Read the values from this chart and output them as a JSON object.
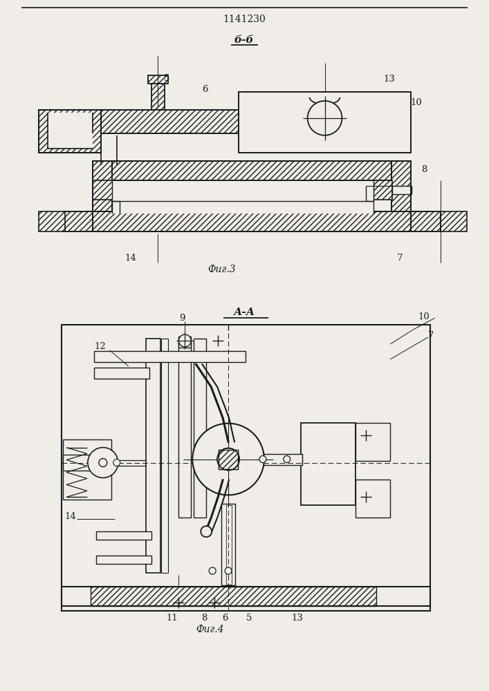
{
  "title": "1141230",
  "fig3_label": "Фиг.3",
  "fig4_label": "Фиг.4",
  "section_bb": "б-б",
  "section_aa": "А-А",
  "bg_color": "#f0ede8",
  "line_color": "#1a1a1a"
}
